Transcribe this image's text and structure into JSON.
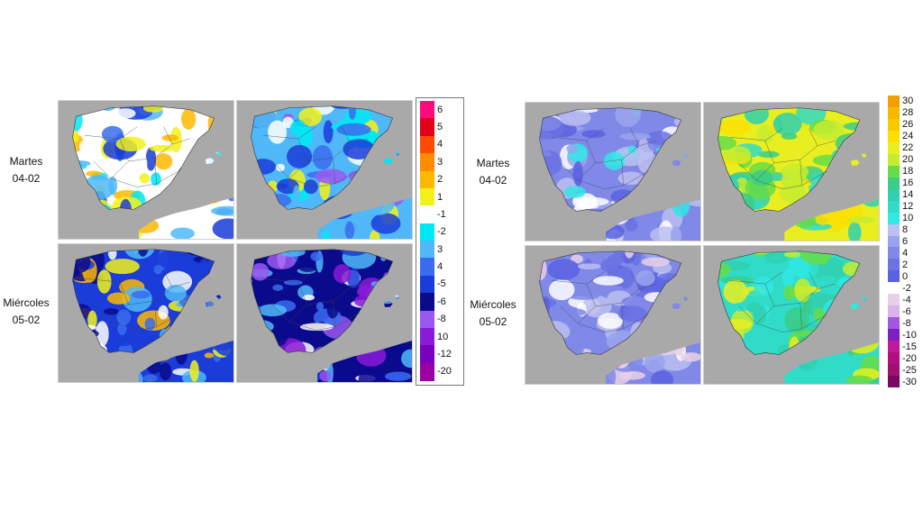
{
  "rows": [
    {
      "day": "Martes",
      "date": "04-02"
    },
    {
      "day": "Miércoles",
      "date": "05-02"
    }
  ],
  "left_panel": {
    "legend": {
      "labels": [
        "6",
        "5",
        "4",
        "3",
        "2",
        "1",
        "-1",
        "-2",
        "3",
        "4",
        "-5",
        "-6",
        "-8",
        "10",
        "-12",
        "-20"
      ],
      "colors": [
        "#ff0a7e",
        "#e0001a",
        "#ff4a00",
        "#ff8c00",
        "#ffb800",
        "#f2f21a",
        "#ffffff",
        "#00e8f4",
        "#50b8f8",
        "#3a6cf0",
        "#1a3cd8",
        "#0a0a8c",
        "#9a58f0",
        "#8a1ad8",
        "#7a00c0",
        "#9a00a6"
      ]
    }
  },
  "right_panel": {
    "legend": {
      "labels": [
        "30",
        "28",
        "26",
        "24",
        "22",
        "20",
        "18",
        "16",
        "14",
        "12",
        "10",
        "8",
        "6",
        "4",
        "2",
        "0",
        "-2",
        "-4",
        "-6",
        "-8",
        "-10",
        "-15",
        "-20",
        "-25",
        "-30"
      ],
      "colors": [
        "#f0a000",
        "#f6b800",
        "#fbc800",
        "#fce000",
        "#e8ee20",
        "#c6ec30",
        "#66dc48",
        "#3acc88",
        "#30d0b0",
        "#30dcc8",
        "#30e8e4",
        "#bcc0f0",
        "#9aa4ec",
        "#8088e8",
        "#6a72e4",
        "#5a62e0",
        "#ffffff",
        "#e8d0e8",
        "#d8b4e8",
        "#a058e0",
        "#7a20c0",
        "#c01898",
        "#b01080",
        "#a01070",
        "#7a0860"
      ]
    }
  },
  "colors": {
    "land_gray": "#a9a9a9",
    "sea_gray": "#a9a9a9"
  }
}
